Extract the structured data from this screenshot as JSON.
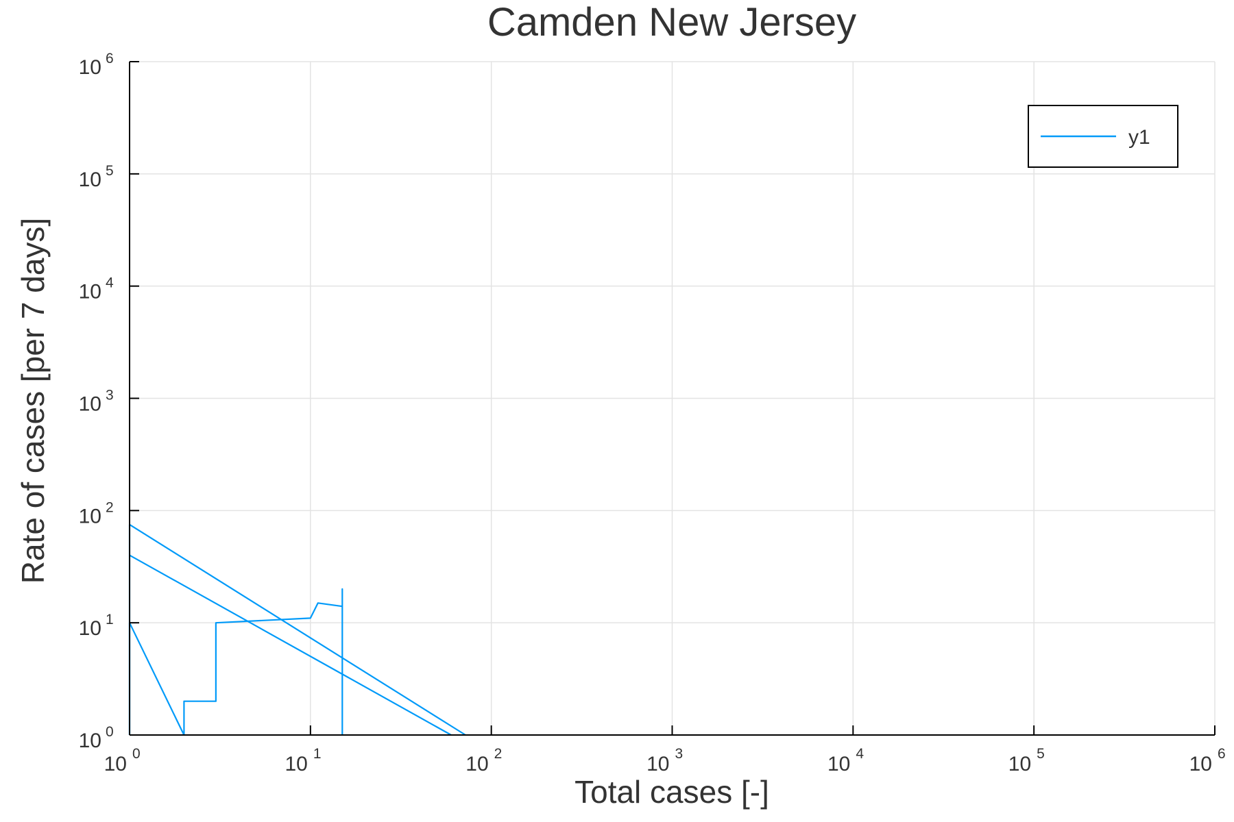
{
  "chart_data": {
    "type": "line",
    "title": "Camden New Jersey",
    "xlabel": "Total cases [-]",
    "ylabel": "Rate of cases [per 7 days]",
    "xscale": "log",
    "yscale": "log",
    "xlim": [
      1,
      1000000
    ],
    "ylim": [
      1,
      1000000
    ],
    "tick_base": "10",
    "xtick_exponents": [
      "0",
      "1",
      "2",
      "3",
      "4",
      "5",
      "6"
    ],
    "ytick_exponents": [
      "0",
      "1",
      "2",
      "3",
      "4",
      "5",
      "6"
    ],
    "grid": true,
    "legend_position": "top-right",
    "series": [
      {
        "name": "y1",
        "color": "#009af9",
        "points": [
          [
            1,
            1
          ],
          [
            1,
            10
          ],
          [
            2,
            1
          ],
          [
            2,
            2
          ],
          [
            3,
            2
          ],
          [
            3,
            10
          ],
          [
            10,
            11
          ],
          [
            11,
            15
          ],
          [
            15,
            14
          ],
          [
            15,
            1
          ],
          [
            15,
            20
          ],
          [
            15,
            1
          ],
          [
            15,
            1
          ]
        ],
        "extra_segments": [
          [
            [
              1,
              75
            ],
            [
              72,
              1
            ]
          ],
          [
            [
              1,
              40
            ],
            [
              60,
              1
            ]
          ],
          [
            [
              1,
              1
            ],
            [
              1,
              75
            ]
          ]
        ]
      }
    ]
  }
}
